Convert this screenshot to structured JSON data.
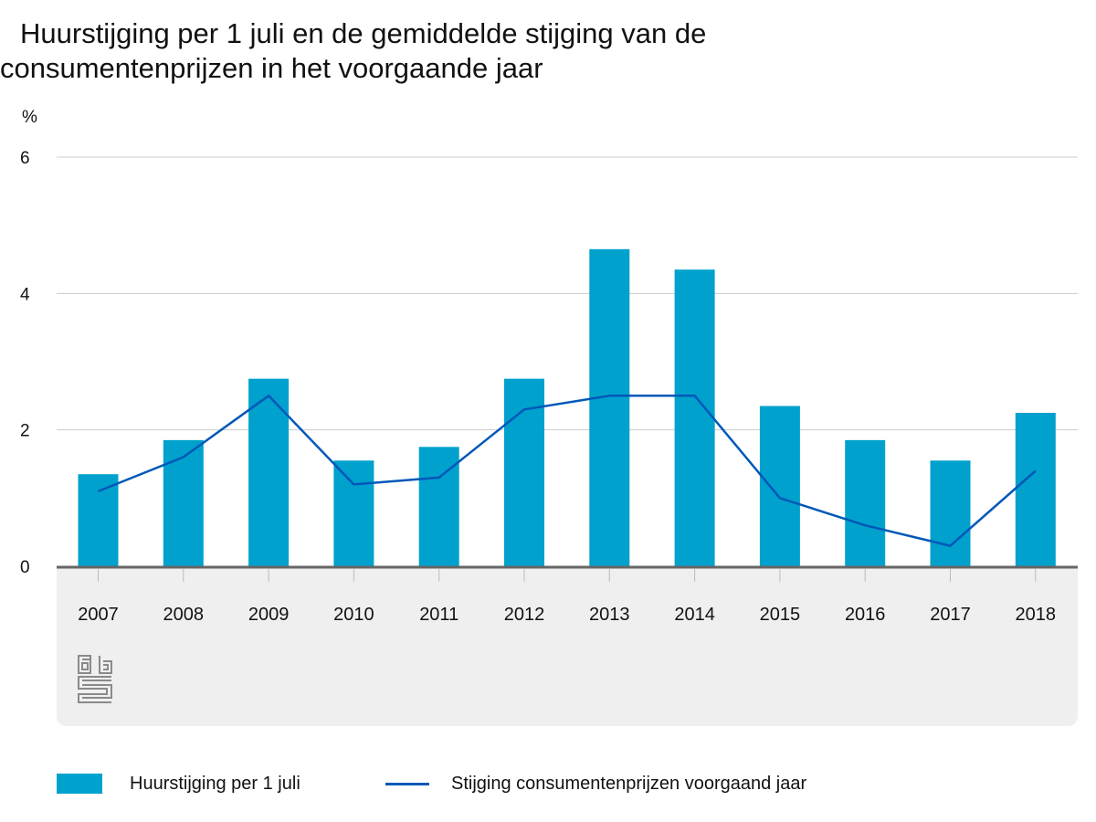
{
  "chart_data": {
    "type": "bar+line",
    "title_line1": "Huurstijging per 1 juli en de gemiddelde stijging van de",
    "title_line2": "consumentenprijzen in het voorgaande jaar",
    "ylabel": "%",
    "ylim": [
      0,
      6
    ],
    "yticks": [
      "0",
      "2",
      "4",
      "6"
    ],
    "grid": true,
    "categories": [
      "2007",
      "2008",
      "2009",
      "2010",
      "2011",
      "2012",
      "2013",
      "2014",
      "2015",
      "2016",
      "2017",
      "2018"
    ],
    "series": [
      {
        "name": "Huurstijging per 1 juli",
        "kind": "bar",
        "color": "#00a1cd",
        "values": [
          1.35,
          1.85,
          2.75,
          1.55,
          1.75,
          2.75,
          4.65,
          4.35,
          2.35,
          1.85,
          1.55,
          2.25
        ]
      },
      {
        "name": "Stijging consumentenprijzen voorgaand jaar",
        "kind": "line",
        "color": "#0058b8",
        "values": [
          1.1,
          1.6,
          2.5,
          1.2,
          1.3,
          2.3,
          2.5,
          2.5,
          1.0,
          0.6,
          0.3,
          1.4
        ]
      }
    ],
    "legend_position": "bottom"
  },
  "logo": {
    "name": "cbs-logo"
  },
  "colors": {
    "axis_band": "#efefef",
    "grid": "#cccccc",
    "axis": "#666666"
  }
}
